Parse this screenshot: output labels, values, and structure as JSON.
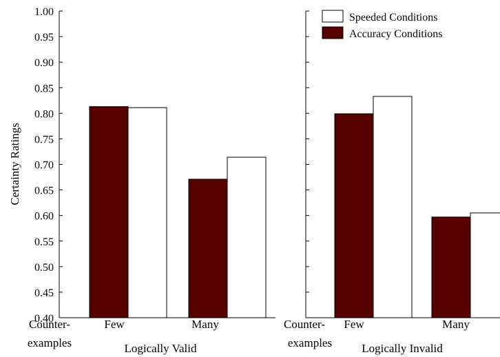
{
  "chart_data": {
    "type": "bar",
    "ylabel": "Certainty Ratings",
    "ylim": [
      0.4,
      1.0
    ],
    "yticks": [
      "0.40",
      "0.45",
      "0.50",
      "0.55",
      "0.60",
      "0.65",
      "0.70",
      "0.75",
      "0.80",
      "0.85",
      "0.90",
      "0.95",
      "1.00"
    ],
    "legend": {
      "placement": "top-right",
      "entries": [
        {
          "name": "Speeded Conditions",
          "color": "#ffffff"
        },
        {
          "name": "Accuracy Conditions",
          "color": "#560000"
        }
      ]
    },
    "panels": [
      {
        "xlabel": "Logically Valid",
        "axis_caption_line1": "Counter-",
        "axis_caption_line2": "examples",
        "categories": [
          "Few",
          "Many"
        ],
        "series": [
          {
            "name": "Accuracy Conditions",
            "values": [
              0.813,
              0.671
            ]
          },
          {
            "name": "Speeded Conditions",
            "values": [
              0.811,
              0.714
            ]
          }
        ]
      },
      {
        "xlabel": "Logically Invalid",
        "axis_caption_line1": "Counter-",
        "axis_caption_line2": "examples",
        "categories": [
          "Few",
          "Many"
        ],
        "series": [
          {
            "name": "Accuracy Conditions",
            "values": [
              0.799,
              0.597
            ]
          },
          {
            "name": "Speeded Conditions",
            "values": [
              0.833,
              0.605
            ]
          }
        ]
      }
    ]
  }
}
